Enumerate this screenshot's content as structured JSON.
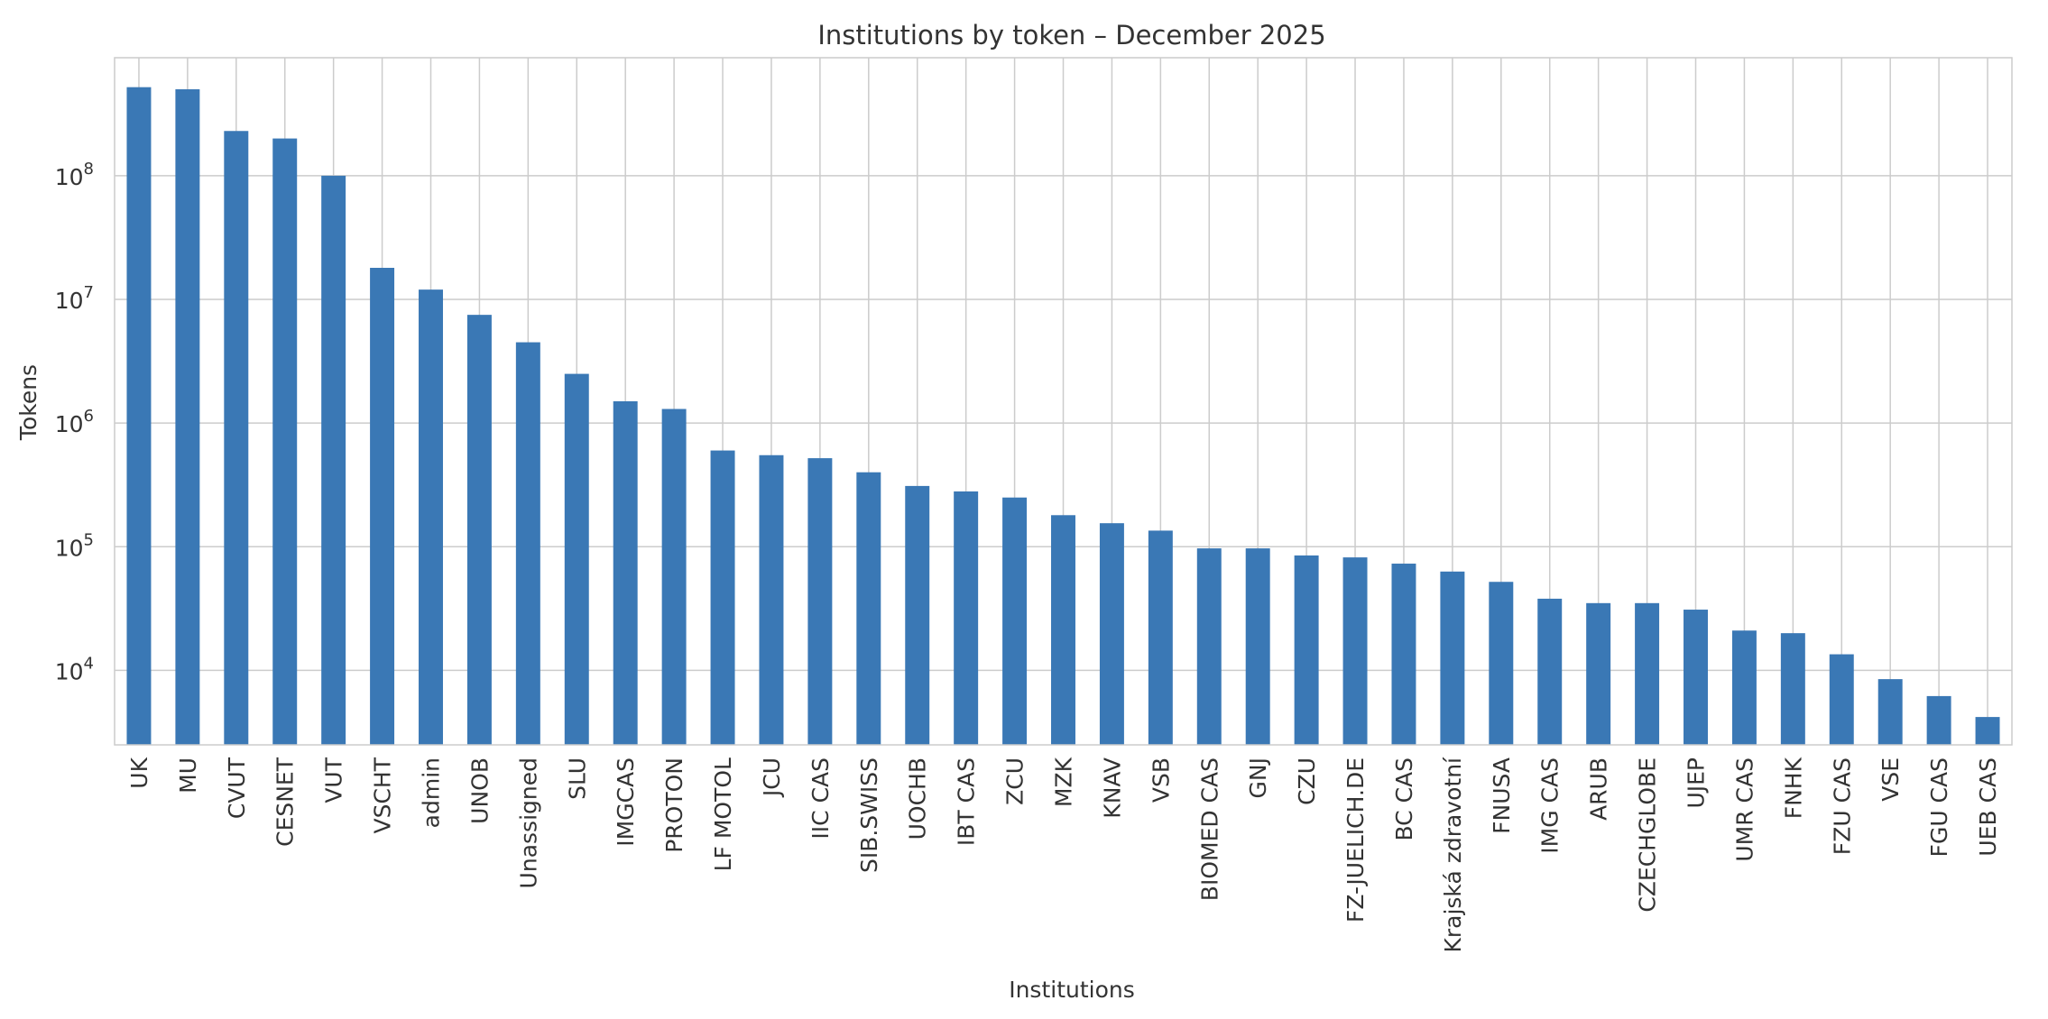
{
  "chart_data": {
    "type": "bar",
    "title": "Institutions by token – December 2025",
    "xlabel": "Institutions",
    "ylabel": "Tokens",
    "yscale": "log",
    "ylim": [
      2500,
      900000000
    ],
    "y_ticks": [
      10000,
      100000,
      1000000,
      10000000,
      100000000
    ],
    "y_tick_labels": [
      {
        "base": "10",
        "exp": "4"
      },
      {
        "base": "10",
        "exp": "5"
      },
      {
        "base": "10",
        "exp": "6"
      },
      {
        "base": "10",
        "exp": "7"
      },
      {
        "base": "10",
        "exp": "8"
      }
    ],
    "grid": true,
    "bar_color": "#3a78b5",
    "categories": [
      "UK",
      "MU",
      "CVUT",
      "CESNET",
      "VUT",
      "VSCHT",
      "admin",
      "UNOB",
      "Unassigned",
      "SLU",
      "IMGCAS",
      "PROTON",
      "LF MOTOL",
      "JCU",
      "IIC CAS",
      "SIB.SWISS",
      "UOCHB",
      "IBT CAS",
      "ZCU",
      "MZK",
      "KNAV",
      "VSB",
      "BIOMED CAS",
      "GNJ",
      "CZU",
      "FZ-JUELICH.DE",
      "BC CAS",
      "Krajská zdravotní",
      "FNUSA",
      "IMG CAS",
      "ARUB",
      "CZECHGLOBE",
      "UJEP",
      "UMR CAS",
      "FNHK",
      "FZU CAS",
      "VSE",
      "FGU CAS",
      "UEB CAS"
    ],
    "values": [
      520000000,
      500000000,
      230000000,
      200000000,
      100000000,
      18000000,
      12000000,
      7500000,
      4500000,
      2500000,
      1500000,
      1300000,
      600000,
      550000,
      520000,
      400000,
      310000,
      280000,
      250000,
      180000,
      155000,
      135000,
      97000,
      97000,
      85000,
      82000,
      73000,
      63000,
      52000,
      38000,
      35000,
      35000,
      31000,
      21000,
      20000,
      13500,
      8500,
      6200,
      4200
    ]
  }
}
